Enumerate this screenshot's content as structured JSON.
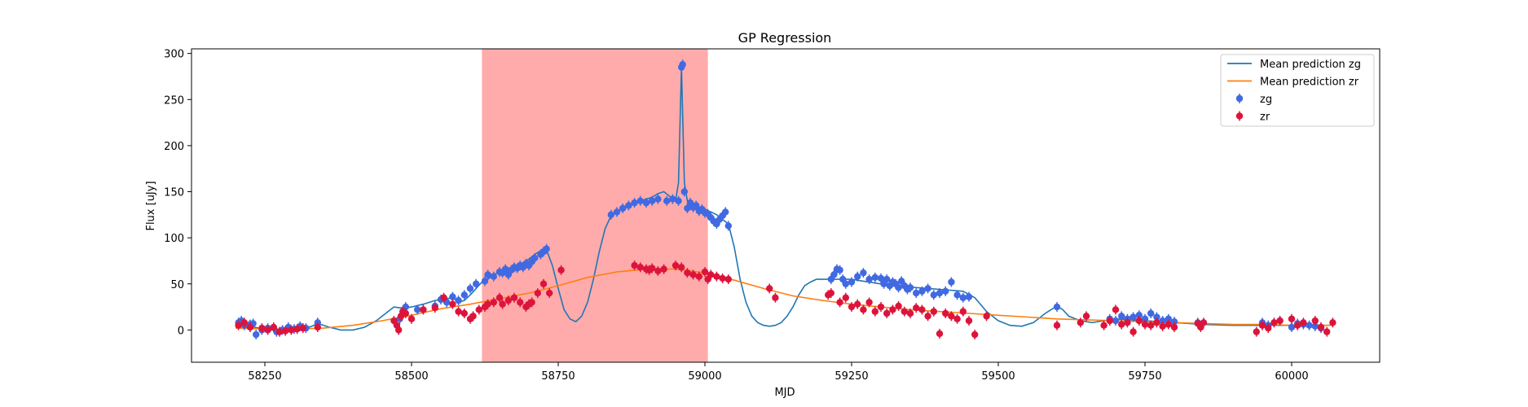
{
  "chart_data": {
    "type": "scatter",
    "title": "GP Regression",
    "xlabel": "MJD",
    "ylabel": "Flux [uJy]",
    "xlim": [
      58125,
      60150
    ],
    "ylim": [
      -35,
      305
    ],
    "xticks": [
      58250,
      58500,
      58750,
      59000,
      59250,
      59500,
      59750,
      60000
    ],
    "yticks": [
      0,
      50,
      100,
      150,
      200,
      250,
      300
    ],
    "grid": false,
    "legend_position": "top-right",
    "shaded_region": {
      "x": [
        58620,
        59005
      ],
      "color": "#ff0000",
      "opacity": 0.33
    },
    "colors": {
      "zg_line": "#1f77b4",
      "zr_line": "#ff7f0e",
      "zg_points": "#4169e1",
      "zr_points": "#dc143c"
    },
    "legend": [
      {
        "label": "Mean prediction zg",
        "kind": "line",
        "color": "#1f77b4"
      },
      {
        "label": "Mean prediction zr",
        "kind": "line",
        "color": "#ff7f0e"
      },
      {
        "label": "zg",
        "kind": "marker",
        "color": "#4169e1"
      },
      {
        "label": "zr",
        "kind": "marker",
        "color": "#dc143c"
      }
    ],
    "lines": [
      {
        "name": "Mean prediction zg",
        "x": [
          58200,
          58210,
          58225,
          58240,
          58260,
          58285,
          58300,
          58320,
          58330,
          58340,
          58360,
          58380,
          58400,
          58420,
          58440,
          58460,
          58470,
          58480,
          58490,
          58500,
          58520,
          58540,
          58560,
          58570,
          58580,
          58590,
          58600,
          58610,
          58620,
          58630,
          58640,
          58650,
          58660,
          58670,
          58680,
          58690,
          58700,
          58710,
          58720,
          58730,
          58740,
          58750,
          58760,
          58770,
          58780,
          58790,
          58800,
          58810,
          58820,
          58830,
          58840,
          58850,
          58860,
          58870,
          58880,
          58890,
          58900,
          58910,
          58920,
          58930,
          58940,
          58950,
          58955,
          58960,
          58965,
          58970,
          58975,
          58980,
          58990,
          59000,
          59010,
          59020,
          59030,
          59040,
          59050,
          59060,
          59070,
          59080,
          59090,
          59100,
          59110,
          59120,
          59130,
          59140,
          59150,
          59160,
          59170,
          59180,
          59190,
          59200,
          59210,
          59220,
          59230,
          59250,
          59270,
          59300,
          59330,
          59360,
          59400,
          59440,
          59460,
          59480,
          59500,
          59520,
          59540,
          59560,
          59580,
          59600,
          59610,
          59620,
          59640,
          59660,
          59680,
          59700,
          59750,
          59800,
          59850,
          59900,
          59950,
          60000,
          60050,
          60070
        ],
        "y": [
          5,
          6,
          4,
          2,
          0,
          -1,
          1,
          2,
          4,
          7,
          3,
          0,
          0,
          3,
          10,
          20,
          25,
          24,
          24,
          25,
          28,
          32,
          34,
          35,
          30,
          32,
          38,
          45,
          52,
          55,
          60,
          63,
          66,
          68,
          70,
          73,
          77,
          82,
          86,
          87,
          70,
          45,
          22,
          12,
          9,
          15,
          30,
          55,
          85,
          110,
          124,
          128,
          132,
          136,
          138,
          140,
          142,
          144,
          148,
          150,
          145,
          140,
          160,
          285,
          160,
          140,
          136,
          135,
          132,
          131,
          128,
          125,
          120,
          115,
          90,
          55,
          30,
          15,
          8,
          5,
          4,
          5,
          8,
          15,
          25,
          38,
          48,
          52,
          55,
          55,
          55,
          55,
          55,
          55,
          53,
          50,
          48,
          46,
          44,
          42,
          35,
          20,
          10,
          5,
          4,
          8,
          18,
          26,
          22,
          15,
          10,
          8,
          10,
          12,
          10,
          8,
          6,
          5,
          5,
          5,
          5,
          5
        ]
      },
      {
        "name": "Mean prediction zr",
        "x": [
          58200,
          58250,
          58300,
          58350,
          58400,
          58450,
          58500,
          58550,
          58600,
          58650,
          58700,
          58750,
          58800,
          58850,
          58900,
          58950,
          59000,
          59050,
          59100,
          59150,
          59200,
          59250,
          59300,
          59350,
          59400,
          59450,
          59500,
          59550,
          59600,
          59650,
          59700,
          59750,
          59800,
          59850,
          59900,
          59950,
          60000,
          60050,
          60070
        ],
        "y": [
          2,
          1,
          1,
          2,
          5,
          10,
          16,
          23,
          28,
          34,
          40,
          48,
          57,
          63,
          66,
          66,
          62,
          54,
          45,
          37,
          32,
          28,
          25,
          22,
          20,
          18,
          16,
          14,
          12,
          11,
          10,
          9,
          8,
          7,
          6,
          6,
          5,
          5,
          5
        ]
      }
    ],
    "series": [
      {
        "name": "zg",
        "x": [
          58205,
          58210,
          58215,
          58225,
          58230,
          58235,
          58245,
          58255,
          58270,
          58280,
          58290,
          58300,
          58310,
          58320,
          58340,
          58480,
          58490,
          58510,
          58540,
          58550,
          58560,
          58570,
          58580,
          58590,
          58600,
          58610,
          58625,
          58630,
          58640,
          58650,
          58655,
          58660,
          58665,
          58670,
          58675,
          58680,
          58685,
          58690,
          58695,
          58700,
          58705,
          58710,
          58720,
          58725,
          58730,
          58840,
          58850,
          58860,
          58870,
          58880,
          58890,
          58900,
          58910,
          58920,
          58935,
          58945,
          58955,
          58960,
          58962,
          58965,
          58970,
          58975,
          58980,
          58985,
          58990,
          58995,
          59000,
          59005,
          59010,
          59015,
          59020,
          59025,
          59030,
          59035,
          59040,
          59215,
          59220,
          59225,
          59230,
          59235,
          59240,
          59250,
          59260,
          59270,
          59280,
          59290,
          59300,
          59305,
          59310,
          59315,
          59320,
          59325,
          59330,
          59335,
          59340,
          59345,
          59350,
          59360,
          59370,
          59380,
          59390,
          59400,
          59410,
          59420,
          59430,
          59440,
          59450,
          59600,
          59690,
          59700,
          59710,
          59720,
          59730,
          59740,
          59750,
          59760,
          59770,
          59780,
          59790,
          59800,
          59840,
          59950,
          59960,
          59980,
          60000,
          60010,
          60020,
          60030,
          60040,
          60050
        ],
        "y": [
          8,
          10,
          5,
          6,
          7,
          -5,
          0,
          2,
          -2,
          0,
          3,
          1,
          4,
          2,
          8,
          12,
          25,
          22,
          26,
          33,
          30,
          36,
          32,
          38,
          45,
          50,
          53,
          60,
          58,
          63,
          62,
          66,
          60,
          65,
          68,
          67,
          70,
          68,
          72,
          70,
          74,
          78,
          82,
          85,
          88,
          125,
          128,
          132,
          135,
          138,
          140,
          138,
          140,
          142,
          140,
          142,
          140,
          285,
          288,
          150,
          132,
          138,
          133,
          135,
          129,
          131,
          127,
          126,
          122,
          118,
          115,
          120,
          124,
          128,
          113,
          55,
          60,
          66,
          65,
          55,
          50,
          52,
          58,
          62,
          55,
          57,
          56,
          50,
          55,
          48,
          52,
          50,
          46,
          53,
          48,
          44,
          46,
          40,
          42,
          45,
          38,
          40,
          42,
          52,
          38,
          35,
          36,
          25,
          12,
          10,
          15,
          12,
          14,
          16,
          12,
          18,
          14,
          10,
          12,
          9,
          8,
          8,
          5,
          10,
          3,
          7,
          6,
          5,
          4,
          2
        ]
      },
      {
        "name": "zr",
        "x": [
          58205,
          58215,
          58225,
          58245,
          58255,
          58265,
          58275,
          58285,
          58295,
          58305,
          58315,
          58340,
          58470,
          58475,
          58478,
          58482,
          58485,
          58490,
          58500,
          58520,
          58540,
          58555,
          58570,
          58580,
          58590,
          58600,
          58605,
          58615,
          58625,
          58630,
          58640,
          58650,
          58655,
          58665,
          58675,
          58685,
          58695,
          58700,
          58705,
          58715,
          58725,
          58735,
          58755,
          58880,
          58890,
          58900,
          58905,
          58910,
          58920,
          58930,
          58950,
          58960,
          58970,
          58980,
          58990,
          59000,
          59005,
          59010,
          59020,
          59030,
          59040,
          59110,
          59120,
          59210,
          59215,
          59230,
          59240,
          59250,
          59260,
          59270,
          59280,
          59290,
          59300,
          59310,
          59320,
          59330,
          59340,
          59350,
          59360,
          59370,
          59380,
          59390,
          59400,
          59410,
          59420,
          59430,
          59440,
          59450,
          59460,
          59480,
          59600,
          59640,
          59650,
          59680,
          59690,
          59700,
          59710,
          59720,
          59730,
          59740,
          59750,
          59760,
          59770,
          59780,
          59790,
          59800,
          59840,
          59845,
          59850,
          59940,
          59950,
          59960,
          59970,
          59980,
          60000,
          60010,
          60020,
          60040,
          60050,
          60060,
          60070
        ],
        "y": [
          5,
          8,
          3,
          2,
          0,
          3,
          -2,
          -1,
          0,
          1,
          2,
          3,
          10,
          5,
          0,
          15,
          20,
          18,
          12,
          22,
          24,
          35,
          28,
          20,
          18,
          12,
          15,
          22,
          25,
          28,
          30,
          35,
          28,
          32,
          35,
          30,
          25,
          28,
          30,
          40,
          50,
          40,
          65,
          70,
          68,
          66,
          65,
          67,
          64,
          66,
          70,
          68,
          62,
          60,
          58,
          63,
          55,
          60,
          58,
          56,
          55,
          45,
          35,
          38,
          40,
          30,
          35,
          25,
          28,
          22,
          30,
          20,
          25,
          18,
          22,
          26,
          20,
          18,
          24,
          22,
          15,
          20,
          -4,
          18,
          15,
          12,
          20,
          10,
          -5,
          15,
          5,
          8,
          15,
          5,
          10,
          22,
          6,
          8,
          -2,
          10,
          6,
          5,
          8,
          4,
          6,
          3,
          7,
          3,
          8,
          -2,
          5,
          2,
          8,
          10,
          12,
          5,
          8,
          10,
          3,
          -2,
          8
        ]
      }
    ]
  }
}
